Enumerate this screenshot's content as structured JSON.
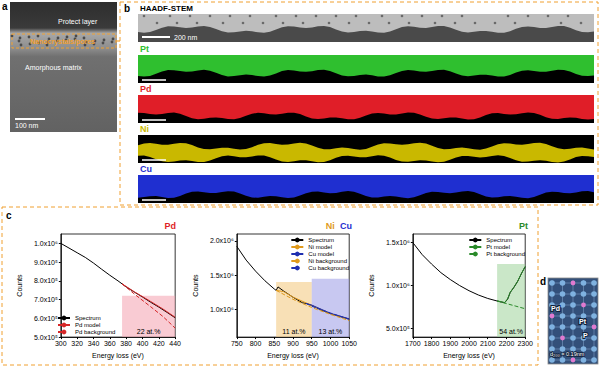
{
  "panels": {
    "a": {
      "letter": "a",
      "labels": [
        "Protect layer",
        "Nanocrystals/pores",
        "Amorphous matrix"
      ],
      "scale_bar": "100 nm"
    },
    "b": {
      "letter": "b",
      "image_label": "HAADF-STEM",
      "scale_bar": "200 nm",
      "maps": [
        {
          "name": "Pt",
          "color": "#2fbf2f"
        },
        {
          "name": "Pd",
          "color": "#e01e28"
        },
        {
          "name": "Ni",
          "color": "#c9b800"
        },
        {
          "name": "Cu",
          "color": "#1f2fd0"
        }
      ]
    },
    "c": {
      "letter": "c"
    },
    "d": {
      "letter": "d",
      "labels": [
        "Pd",
        "Pt",
        "P"
      ],
      "spacing_label": "d₂₀₀ = 0.19nm"
    }
  },
  "chart_data": [
    {
      "type": "line",
      "titles": [
        {
          "text": "Pd",
          "color": "#e01e28"
        }
      ],
      "x_label": "Energy loss (eV)",
      "y_label": "Counts",
      "xlim": [
        300,
        440
      ],
      "xticks": [
        300,
        320,
        340,
        360,
        380,
        400,
        420,
        440
      ],
      "ylim": [
        500000,
        1050000
      ],
      "yticks": [
        {
          "value": 500000,
          "label": "5.0x10⁵"
        },
        {
          "value": 600000,
          "label": "6.0x10⁵"
        },
        {
          "value": 700000,
          "label": "7.0x10⁵"
        },
        {
          "value": 800000,
          "label": "8.0x10⁵"
        },
        {
          "value": 900000,
          "label": "9.0x10⁵"
        },
        {
          "value": 1000000,
          "label": "1.0x10⁶"
        }
      ],
      "grid": false,
      "legend": "lower left",
      "series": [
        {
          "name": "Spectrum",
          "color": "#000000",
          "line_style": "solid",
          "x": [
            300,
            310,
            320,
            330,
            340,
            350,
            360,
            370,
            380,
            390,
            400,
            410,
            420,
            430,
            440
          ],
          "values": [
            1000000,
            975000,
            950000,
            925000,
            895000,
            862000,
            830000,
            800000,
            768000,
            740000,
            714000,
            686000,
            660000,
            632000,
            603000
          ]
        },
        {
          "name": "Pd model",
          "color": "#d62728",
          "line_style": "solid",
          "x": [
            375,
            390,
            410,
            425,
            440
          ],
          "values": [
            784000,
            742000,
            690000,
            650000,
            606000
          ]
        },
        {
          "name": "Pd background",
          "color": "#d62728",
          "line_style": "dashed",
          "x": [
            375,
            390,
            410,
            425,
            440
          ],
          "values": [
            784000,
            730000,
            662000,
            610000,
            548000
          ]
        }
      ],
      "regions": [
        {
          "x": [
            375,
            440
          ],
          "y": [
            500000,
            720000
          ],
          "label": "22 at.%",
          "color": "#f4a0ae"
        }
      ]
    },
    {
      "type": "line",
      "titles": [
        {
          "text": "Ni",
          "color": "#e09a1c"
        },
        {
          "text": "Cu",
          "color": "#1f2fd0"
        }
      ],
      "x_label": "Energy loss (eV)",
      "y_label": "Counts",
      "xlim": [
        750,
        1050
      ],
      "xticks": [
        750,
        800,
        850,
        900,
        950,
        1000,
        1050
      ],
      "ylim": [
        600000,
        2100000
      ],
      "yticks": [
        {
          "value": 1000000,
          "label": "1.0x10⁶"
        },
        {
          "value": 1500000,
          "label": "1.5x10⁶"
        },
        {
          "value": 2000000,
          "label": "2.0x10⁶"
        }
      ],
      "grid": false,
      "legend": "upper right",
      "series": [
        {
          "name": "Spectrum",
          "color": "#000000",
          "line_style": "solid",
          "x": [
            750,
            775,
            800,
            825,
            850,
            855,
            860,
            875,
            900,
            925,
            935,
            950,
            975,
            1000,
            1025,
            1050
          ],
          "values": [
            1920000,
            1720000,
            1560000,
            1420000,
            1300000,
            1280000,
            1330000,
            1270000,
            1180000,
            1100000,
            1090000,
            1060000,
            995000,
            940000,
            900000,
            860000
          ]
        },
        {
          "name": "Ni model",
          "color": "#e09a1c",
          "line_style": "solid",
          "x": [
            855,
            875,
            900,
            950,
            1000,
            1050
          ],
          "values": [
            1280000,
            1262000,
            1182000,
            1062000,
            942000,
            862000
          ]
        },
        {
          "name": "Cu model",
          "color": "#1f2fb0",
          "line_style": "solid",
          "x": [
            935,
            950,
            1000,
            1050
          ],
          "values": [
            1090000,
            1066000,
            946000,
            866000
          ]
        },
        {
          "name": "Ni background",
          "color": "#e09a1c",
          "line_style": "dashed",
          "x": [
            855,
            900,
            950,
            1000,
            1050
          ],
          "values": [
            1280000,
            1150000,
            1030000,
            930000,
            840000
          ]
        },
        {
          "name": "Cu background",
          "color": "#1f2fb0",
          "line_style": "dashed",
          "x": [
            935,
            950,
            1000,
            1050
          ],
          "values": [
            1090000,
            1050000,
            950000,
            860000
          ]
        }
      ],
      "regions": [
        {
          "x": [
            855,
            950
          ],
          "y": [
            600000,
            1400000
          ],
          "label": "11 at.%",
          "color": "#f2c77a"
        },
        {
          "x": [
            950,
            1050
          ],
          "y": [
            600000,
            1450000
          ],
          "label": "13 at.%",
          "color": "#9b9be6"
        }
      ]
    },
    {
      "type": "line",
      "titles": [
        {
          "text": "Pt",
          "color": "#2a8a2a"
        }
      ],
      "x_label": "Energy loss (eV)",
      "y_label": "Counts",
      "xlim": [
        1700,
        2300
      ],
      "xticks": [
        1700,
        1800,
        1900,
        2000,
        2100,
        2200,
        2300
      ],
      "ylim": [
        400000,
        1600000
      ],
      "yticks": [
        {
          "value": 500000,
          "label": "5.0x10⁵"
        },
        {
          "value": 1000000,
          "label": "1.0x10⁶"
        },
        {
          "value": 1500000,
          "label": "1.5x10⁶"
        }
      ],
      "grid": false,
      "legend": "upper right",
      "series": [
        {
          "name": "Spectrum",
          "color": "#000000",
          "line_style": "solid",
          "x": [
            1700,
            1750,
            1800,
            1850,
            1900,
            1950,
            2000,
            2050,
            2100,
            2150,
            2190,
            2206,
            2220,
            2240,
            2260,
            2280,
            2300
          ],
          "values": [
            1500000,
            1360000,
            1250000,
            1150000,
            1070000,
            1000000,
            940000,
            890000,
            850000,
            820000,
            800000,
            840000,
            920000,
            980000,
            1050000,
            1140000,
            1220000
          ]
        },
        {
          "name": "Pt model",
          "color": "#2a8a2a",
          "line_style": "solid",
          "x": [
            2150,
            2190,
            2206,
            2220,
            2240,
            2260,
            2280,
            2300
          ],
          "values": [
            822000,
            802000,
            845000,
            922000,
            982000,
            1052000,
            1142000,
            1222000
          ]
        },
        {
          "name": "Pt background",
          "color": "#2a8a2a",
          "line_style": "dashed",
          "x": [
            2150,
            2200,
            2250,
            2300
          ],
          "values": [
            820000,
            790000,
            760000,
            730000
          ]
        }
      ],
      "regions": [
        {
          "x": [
            2150,
            2300
          ],
          "y": [
            400000,
            1250000
          ],
          "label": "54 at.%",
          "color": "#9fd49a"
        }
      ]
    }
  ]
}
